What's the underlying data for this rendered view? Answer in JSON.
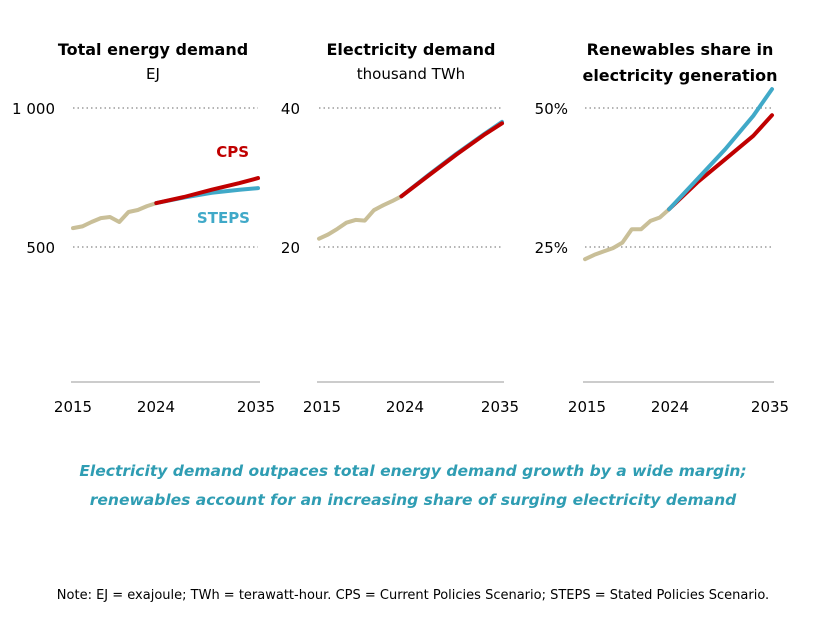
{
  "colors": {
    "historical": "#c9bf98",
    "CPS": "#c00000",
    "STEPS": "#40a9c8",
    "caption": "#2f9db3",
    "grid": "#888888",
    "axis": "#999999"
  },
  "chart_data": [
    {
      "type": "line",
      "title": "Total energy demand",
      "unit": "EJ",
      "x_ticks": [
        "2015",
        "2024",
        "2035"
      ],
      "y_ticks": [
        {
          "value": 500,
          "label": "500"
        },
        {
          "value": 1000,
          "label": "1 000"
        }
      ],
      "ylim": [
        0,
        1000
      ],
      "xlim": [
        2015,
        2035
      ],
      "grid": "dotted horizontal",
      "labels": {
        "CPS": "CPS",
        "STEPS": "STEPS"
      },
      "series": [
        {
          "name": "historical",
          "x": [
            2015,
            2016,
            2017,
            2018,
            2019,
            2020,
            2021,
            2022,
            2023,
            2024
          ],
          "values": [
            568,
            574,
            590,
            604,
            608,
            590,
            626,
            633,
            647,
            658
          ]
        },
        {
          "name": "CPS",
          "x": [
            2024,
            2027,
            2030,
            2033,
            2035
          ],
          "values": [
            658,
            680,
            706,
            730,
            748
          ]
        },
        {
          "name": "STEPS",
          "x": [
            2024,
            2027,
            2030,
            2033,
            2035
          ],
          "values": [
            658,
            678,
            695,
            706,
            712
          ]
        }
      ]
    },
    {
      "type": "line",
      "title": "Electricity demand",
      "unit": "thousand TWh",
      "x_ticks": [
        "2015",
        "2024",
        "2035"
      ],
      "y_ticks": [
        {
          "value": 20,
          "label": "20"
        },
        {
          "value": 40,
          "label": "40"
        }
      ],
      "ylim": [
        0,
        40
      ],
      "xlim": [
        2015,
        2035
      ],
      "grid": "dotted horizontal",
      "series": [
        {
          "name": "historical",
          "x": [
            2015,
            2016,
            2017,
            2018,
            2019,
            2020,
            2021,
            2022,
            2023,
            2024
          ],
          "values": [
            21.2,
            21.8,
            22.6,
            23.5,
            23.9,
            23.8,
            25.3,
            26.0,
            26.6,
            27.3
          ]
        },
        {
          "name": "CPS",
          "x": [
            2024,
            2027,
            2030,
            2033,
            2035
          ],
          "values": [
            27.3,
            30.3,
            33.3,
            36.1,
            37.8
          ]
        },
        {
          "name": "STEPS",
          "x": [
            2024,
            2027,
            2030,
            2033,
            2035
          ],
          "values": [
            27.3,
            30.4,
            33.4,
            36.2,
            38.0
          ]
        }
      ]
    },
    {
      "type": "line",
      "title": "Renewables share in electricity generation",
      "title_lines": [
        "Renewables share in",
        "electricity generation"
      ],
      "x_ticks": [
        "2015",
        "2024",
        "2035"
      ],
      "y_ticks": [
        {
          "value": 25,
          "label": "25%"
        },
        {
          "value": 50,
          "label": "50%"
        }
      ],
      "ylim": [
        0,
        50
      ],
      "xlim": [
        2015,
        2035
      ],
      "grid": "dotted horizontal",
      "series": [
        {
          "name": "historical",
          "x": [
            2015,
            2016,
            2017,
            2018,
            2019,
            2020,
            2021,
            2022,
            2023,
            2024
          ],
          "values": [
            22.8,
            23.6,
            24.2,
            24.8,
            25.8,
            28.2,
            28.2,
            29.7,
            30.3,
            31.8
          ]
        },
        {
          "name": "CPS",
          "x": [
            2024,
            2027,
            2030,
            2033,
            2035
          ],
          "values": [
            31.8,
            36.6,
            40.8,
            45.0,
            48.7
          ]
        },
        {
          "name": "STEPS",
          "x": [
            2024,
            2027,
            2030,
            2033,
            2035
          ],
          "values": [
            31.8,
            37.2,
            42.6,
            48.6,
            53.4
          ]
        }
      ]
    }
  ],
  "caption": [
    "Electricity demand outpaces total energy demand growth by a wide margin;",
    "renewables account for an increasing share of surging electricity demand"
  ],
  "note": "Note: EJ = exajoule; TWh = terawatt-hour. CPS = Current Policies Scenario; STEPS = Stated Policies Scenario."
}
